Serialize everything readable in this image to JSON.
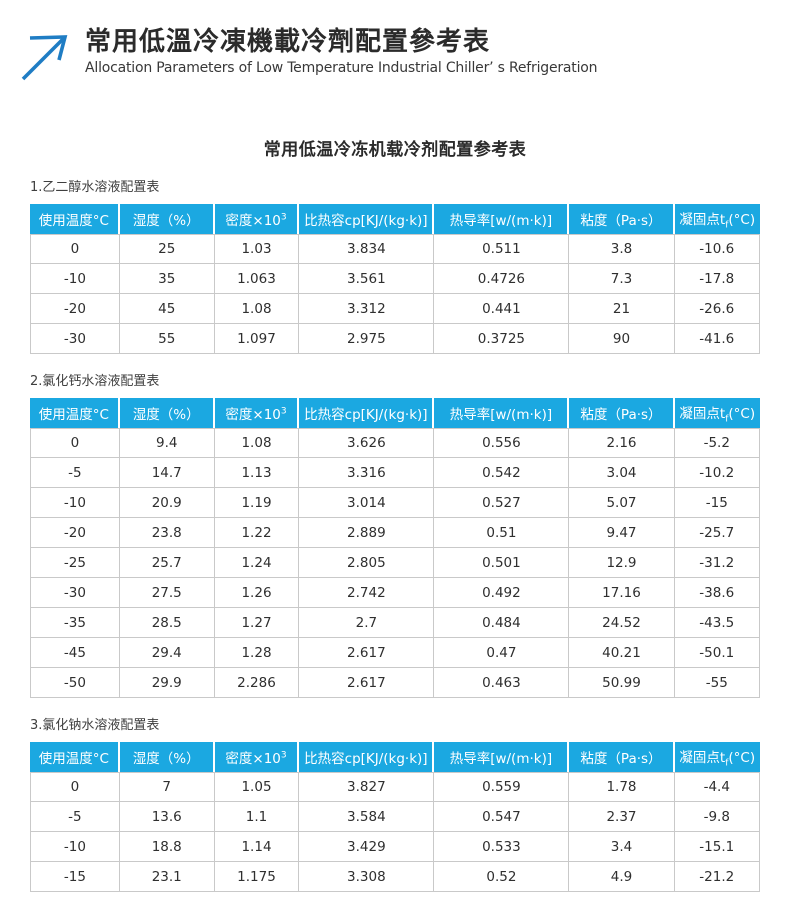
{
  "page_header": {
    "logo_icon": "arrow-up-right-icon",
    "title_zh": "常用低溫冷凍機載冷劑配置參考表",
    "subtitle_en": "Allocation Parameters of Low Temperature Industrial Chiller’ s Refrigeration"
  },
  "document": {
    "title": "常用低温冷冻机载冷剂配置参考表"
  },
  "colors": {
    "header_blue": "#1ba8e1",
    "logo_blue": "#1f7dc4",
    "border_gray": "#c9c9c9",
    "text_dark": "#2b2b2b"
  },
  "table_header": {
    "temp": "使用温度°C",
    "humidity": "湿度（%）",
    "density_base": "密度×10",
    "density_sup": "3",
    "heat_capacity": "比热容cp[KJ/(kg·k)]",
    "conductivity": "热导率[w/(m·k)]",
    "viscosity": "粘度（Pa·s）",
    "freezing_base": "凝固点t",
    "freezing_sub": "f",
    "freezing_unit": "(°C)"
  },
  "sections": [
    {
      "label": "1.乙二醇水溶液配置表",
      "rows": [
        [
          "0",
          "25",
          "1.03",
          "3.834",
          "0.511",
          "3.8",
          "-10.6"
        ],
        [
          "-10",
          "35",
          "1.063",
          "3.561",
          "0.4726",
          "7.3",
          "-17.8"
        ],
        [
          "-20",
          "45",
          "1.08",
          "3.312",
          "0.441",
          "21",
          "-26.6"
        ],
        [
          "-30",
          "55",
          "1.097",
          "2.975",
          "0.3725",
          "90",
          "-41.6"
        ]
      ]
    },
    {
      "label": "2.氯化钙水溶液配置表",
      "rows": [
        [
          "0",
          "9.4",
          "1.08",
          "3.626",
          "0.556",
          "2.16",
          "-5.2"
        ],
        [
          "-5",
          "14.7",
          "1.13",
          "3.316",
          "0.542",
          "3.04",
          "-10.2"
        ],
        [
          "-10",
          "20.9",
          "1.19",
          "3.014",
          "0.527",
          "5.07",
          "-15"
        ],
        [
          "-20",
          "23.8",
          "1.22",
          "2.889",
          "0.51",
          "9.47",
          "-25.7"
        ],
        [
          "-25",
          "25.7",
          "1.24",
          "2.805",
          "0.501",
          "12.9",
          "-31.2"
        ],
        [
          "-30",
          "27.5",
          "1.26",
          "2.742",
          "0.492",
          "17.16",
          "-38.6"
        ],
        [
          "-35",
          "28.5",
          "1.27",
          "2.7",
          "0.484",
          "24.52",
          "-43.5"
        ],
        [
          "-45",
          "29.4",
          "1.28",
          "2.617",
          "0.47",
          "40.21",
          "-50.1"
        ],
        [
          "-50",
          "29.9",
          "2.286",
          "2.617",
          "0.463",
          "50.99",
          "-55"
        ]
      ]
    },
    {
      "label": "3.氯化钠水溶液配置表",
      "rows": [
        [
          "0",
          "7",
          "1.05",
          "3.827",
          "0.559",
          "1.78",
          "-4.4"
        ],
        [
          "-5",
          "13.6",
          "1.1",
          "3.584",
          "0.547",
          "2.37",
          "-9.8"
        ],
        [
          "-10",
          "18.8",
          "1.14",
          "3.429",
          "0.533",
          "3.4",
          "-15.1"
        ],
        [
          "-15",
          "23.1",
          "1.175",
          "3.308",
          "0.52",
          "4.9",
          "-21.2"
        ]
      ]
    }
  ]
}
